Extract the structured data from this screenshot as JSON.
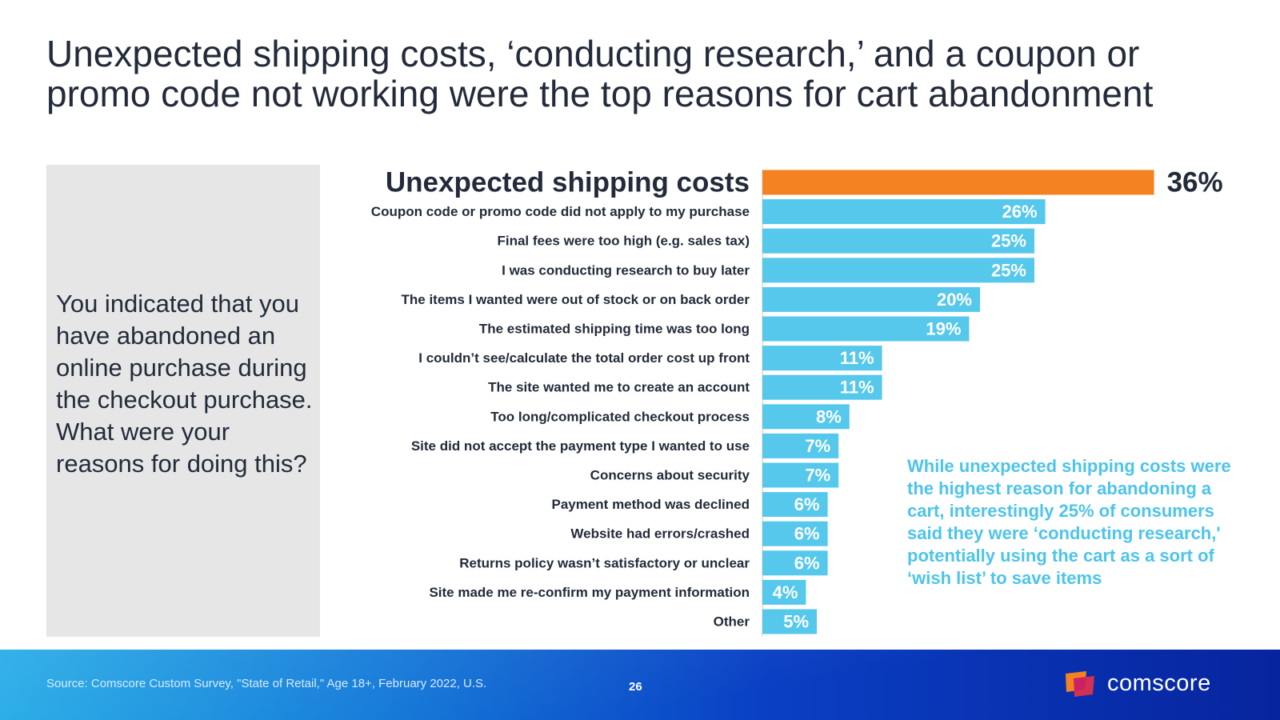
{
  "title": {
    "line1": "Unexpected shipping costs, ‘conducting research,’ and a coupon or",
    "line2": "promo code not working were the top reasons for cart abandonment"
  },
  "question": "You indicated that you have abandoned an online purchase during the checkout purchase. What were your reasons for doing this?",
  "annotation": "While unexpected shipping costs were the highest reason for abandoning a cart, interestingly 25% of consumers said they were ‘conducting research,' potentially using the cart as a sort of ‘wish list’ to save items",
  "footer": {
    "source": "Source: Comscore Custom Survey, \"State of Retail,\" Age 18+, February 2022, U.S.",
    "page_number": "26",
    "brand": "comscore"
  },
  "colors": {
    "highlight_bar": "#f58220",
    "bar": "#55c8ec",
    "annotation": "#4dc4ea",
    "text_dark": "#232b3a"
  },
  "chart_data": {
    "type": "bar",
    "orientation": "horizontal",
    "unit": "%",
    "xlim": [
      0,
      36
    ],
    "highlight_index": 0,
    "categories": [
      "Unexpected shipping costs",
      "Coupon code or promo code did not apply to my purchase",
      "Final fees were too high (e.g. sales tax)",
      "I was conducting research to buy later",
      "The items I wanted were out of stock or on back order",
      "The estimated shipping time was too long",
      "I couldn’t see/calculate the total order cost up front",
      "The site wanted me to create an account",
      "Too long/complicated checkout process",
      "Site did not accept the payment type I wanted to use",
      "Concerns about security",
      "Payment method was declined",
      "Website had errors/crashed",
      "Returns policy wasn’t satisfactory or unclear",
      "Site made me re-confirm my payment information",
      "Other"
    ],
    "values": [
      36,
      26,
      25,
      25,
      20,
      19,
      11,
      11,
      8,
      7,
      7,
      6,
      6,
      6,
      4,
      5
    ],
    "value_labels": [
      "36%",
      "26%",
      "25%",
      "25%",
      "20%",
      "19%",
      "11%",
      "11%",
      "8%",
      "7%",
      "7%",
      "6%",
      "6%",
      "6%",
      "4%",
      "5%"
    ]
  }
}
